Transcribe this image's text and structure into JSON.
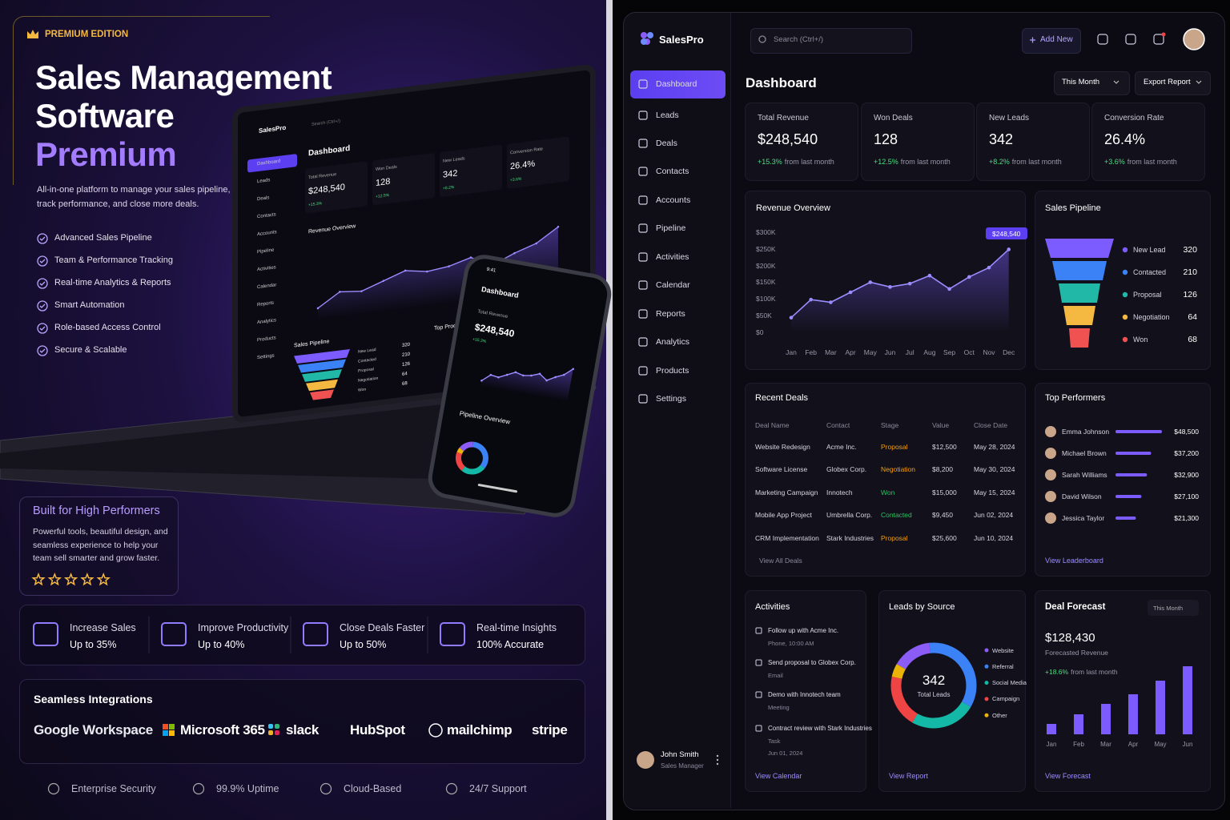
{
  "hero": {
    "badge": "PREMIUM EDITION",
    "title": [
      "Sales Management",
      "Software",
      "Premium"
    ],
    "description": "All-in-one platform to manage your sales pipeline, track performance, and close more deals.",
    "features": [
      "Advanced Sales Pipeline",
      "Team & Performance Tracking",
      "Real-time Analytics & Reports",
      "Smart Automation",
      "Role-based Access Control",
      "Secure & Scalable"
    ]
  },
  "highlight": {
    "title": "Built for High Performers",
    "text": "Powerful tools, beautiful design, and seamless experience to help your team sell smarter and grow faster.",
    "stars": 5
  },
  "benefits": [
    {
      "title": "Increase Sales",
      "detail": "Up to 35%"
    },
    {
      "title": "Improve Productivity",
      "detail": "Up to 40%"
    },
    {
      "title": "Close Deals Faster",
      "detail": "Up to 50%"
    },
    {
      "title": "Real-time Insights",
      "detail": "100% Accurate"
    }
  ],
  "integrations": {
    "title": "Seamless Integrations",
    "logos": [
      "Google Workspace",
      "Microsoft 365",
      "slack",
      "HubSpot",
      "mailchimp",
      "stripe"
    ]
  },
  "footer": [
    "Enterprise Security",
    "99.9% Uptime",
    "Cloud-Based",
    "24/7 Support"
  ],
  "mockup": {
    "phone_time": "9:41",
    "top_products": "Top Products",
    "pipeline_overview": "Pipeline Overview"
  },
  "app": {
    "brand": "SalesPro",
    "search": "Search (Ctrl+/)",
    "add_new": "Add New",
    "nav": [
      "Dashboard",
      "Leads",
      "Deals",
      "Contacts",
      "Accounts",
      "Pipeline",
      "Activities",
      "Calendar",
      "Reports",
      "Analytics",
      "Products",
      "Settings"
    ],
    "user": {
      "name": "John Smith",
      "role": "Sales Manager"
    },
    "page_title": "Dashboard",
    "period": "This Month",
    "export": "Export Report"
  },
  "kpis": [
    {
      "label": "Total Revenue",
      "value": "$248,540",
      "change": "+15.3%",
      "note": "from last month"
    },
    {
      "label": "Won Deals",
      "value": "128",
      "change": "+12.5%",
      "note": "from last month"
    },
    {
      "label": "New Leads",
      "value": "342",
      "change": "+8.2%",
      "note": "from last month"
    },
    {
      "label": "Conversion Rate",
      "value": "26.4%",
      "change": "+3.6%",
      "note": "from last month"
    }
  ],
  "deals": {
    "title": "Recent Deals",
    "columns": [
      "Deal Name",
      "Contact",
      "Stage",
      "Value",
      "Close Date"
    ],
    "rows": [
      [
        "Website Redesign",
        "Acme Inc.",
        "Proposal",
        "$12,500",
        "May 28, 2024"
      ],
      [
        "Software License",
        "Globex Corp.",
        "Negotiation",
        "$8,200",
        "May 30, 2024"
      ],
      [
        "Marketing Campaign",
        "Innotech",
        "Won",
        "$15,000",
        "May 15, 2024"
      ],
      [
        "Mobile App Project",
        "Umbrella Corp.",
        "Contacted",
        "$9,450",
        "Jun 02, 2024"
      ],
      [
        "CRM Implementation",
        "Stark Industries",
        "Proposal",
        "$25,600",
        "Jun 10, 2024"
      ]
    ],
    "link": "View All Deals"
  },
  "activities": {
    "title": "Activities",
    "items": [
      {
        "title": "Follow up with Acme Inc.",
        "details": [
          "Phone, 10:00 AM"
        ]
      },
      {
        "title": "Send proposal to Globex Corp.",
        "details": [
          "Email"
        ]
      },
      {
        "title": "Demo with Innotech team",
        "details": [
          "Meeting"
        ]
      },
      {
        "title": "Contract review with Stark Industries",
        "details": [
          "Task",
          "Jun 01, 2024"
        ]
      }
    ],
    "link": "View Calendar"
  },
  "chart_data": [
    {
      "type": "line",
      "title": "Revenue Overview",
      "categories": [
        "Jan",
        "Feb",
        "Mar",
        "Apr",
        "May",
        "Jun",
        "Jul",
        "Aug",
        "Sep",
        "Oct",
        "Nov",
        "Dec"
      ],
      "values": [
        44000,
        98000,
        90000,
        120000,
        150000,
        136000,
        146000,
        170000,
        130000,
        166000,
        194000,
        248540
      ],
      "value_labels": [
        null,
        null,
        null,
        null,
        null,
        null,
        null,
        null,
        null,
        null,
        null,
        "$248,540"
      ],
      "color": "#9b8cff",
      "ylim": [
        0,
        300000
      ],
      "yticks": [
        {
          "value": 0,
          "label": "$0"
        },
        {
          "value": 50000,
          "label": "$50K"
        },
        {
          "value": 100000,
          "label": "$100K"
        },
        {
          "value": 150000,
          "label": "$150K"
        },
        {
          "value": 200000,
          "label": "$200K"
        },
        {
          "value": 250000,
          "label": "$250K"
        },
        {
          "value": 300000,
          "label": "$300K"
        }
      ],
      "grid": false
    },
    {
      "type": "funnel",
      "title": "Sales Pipeline",
      "categories": [
        "New Lead",
        "Contacted",
        "Proposal",
        "Negotiation",
        "Won"
      ],
      "values": [
        320,
        210,
        126,
        64,
        68
      ],
      "colors": [
        "#7c5cff",
        "#3b82f6",
        "#22b8a8",
        "#f5b942",
        "#f05252"
      ]
    },
    {
      "type": "bar",
      "orientation": "horizontal",
      "title": "Top Performers",
      "categories": [
        "Emma Johnson",
        "Michael Brown",
        "Sarah Williams",
        "David Wilson",
        "Jessica Taylor"
      ],
      "values": [
        48500,
        37200,
        32900,
        27100,
        21300
      ],
      "value_labels": [
        "$48,500",
        "$37,200",
        "$32,900",
        "$27,100",
        "$21,300"
      ],
      "color": "#7c5cff",
      "xlim": [
        0,
        48500
      ],
      "link": "View Leaderboard"
    },
    {
      "type": "donut",
      "title": "Leads by Source",
      "categories": [
        "Website",
        "Referral",
        "Social Media",
        "Campaign",
        "Other"
      ],
      "values": [
        15,
        35,
        25,
        20,
        5
      ],
      "colors": [
        "#8b5cf6",
        "#3b82f6",
        "#14b8a6",
        "#ef4444",
        "#eab308"
      ],
      "center_value": 342,
      "center_label": "Total Leads",
      "link": "View Report"
    },
    {
      "type": "bar",
      "title": "Deal Forecast",
      "period": "This Month",
      "total": "$128,430",
      "total_label": "Forecasted Revenue",
      "change": "+18.6%",
      "change_note": "from last month",
      "categories": [
        "Jan",
        "Feb",
        "Mar",
        "Apr",
        "May",
        "Jun"
      ],
      "values": [
        13,
        25,
        38,
        50,
        67,
        85
      ],
      "color": "#7c5cff",
      "ylim": [
        0,
        90
      ],
      "link": "View Forecast"
    }
  ]
}
